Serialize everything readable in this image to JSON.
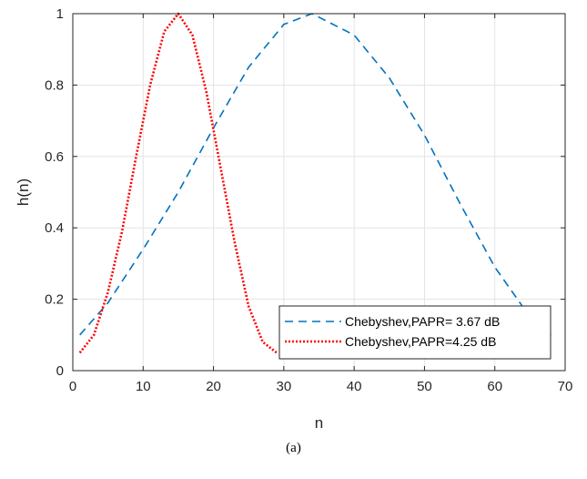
{
  "chart_data": {
    "type": "line",
    "title": "",
    "xlabel": "n",
    "ylabel": "h(n)",
    "xlim": [
      0,
      70
    ],
    "ylim": [
      0,
      1
    ],
    "xticks": [
      0,
      10,
      20,
      30,
      40,
      50,
      60,
      70
    ],
    "yticks": [
      0,
      0.2,
      0.4,
      0.6,
      0.8,
      1
    ],
    "ytick_labels": [
      "0",
      "0.2",
      "0.4",
      "0.6",
      "0.8",
      "1"
    ],
    "grid": true,
    "legend_position": "bottom-right",
    "series": [
      {
        "name": "Chebyshev,PAPR= 3.67 dB",
        "color": "#0072BD",
        "line_style": "dashed",
        "x": [
          1,
          5,
          10,
          15,
          20,
          25,
          30,
          34,
          40,
          45,
          50,
          55,
          60,
          65,
          68
        ],
        "y": [
          0.1,
          0.19,
          0.34,
          0.5,
          0.68,
          0.85,
          0.97,
          1.0,
          0.94,
          0.82,
          0.66,
          0.47,
          0.29,
          0.15,
          0.1
        ]
      },
      {
        "name": "Chebyshev,PAPR=4.25 dB",
        "color": "#FF0000",
        "line_style": "dotted",
        "x": [
          1,
          3,
          5,
          7,
          9,
          11,
          13,
          15,
          17,
          19,
          21,
          23,
          25,
          27,
          29
        ],
        "y": [
          0.05,
          0.1,
          0.22,
          0.39,
          0.6,
          0.8,
          0.95,
          1.0,
          0.94,
          0.78,
          0.57,
          0.36,
          0.18,
          0.08,
          0.05
        ]
      }
    ]
  },
  "caption": "(a)"
}
